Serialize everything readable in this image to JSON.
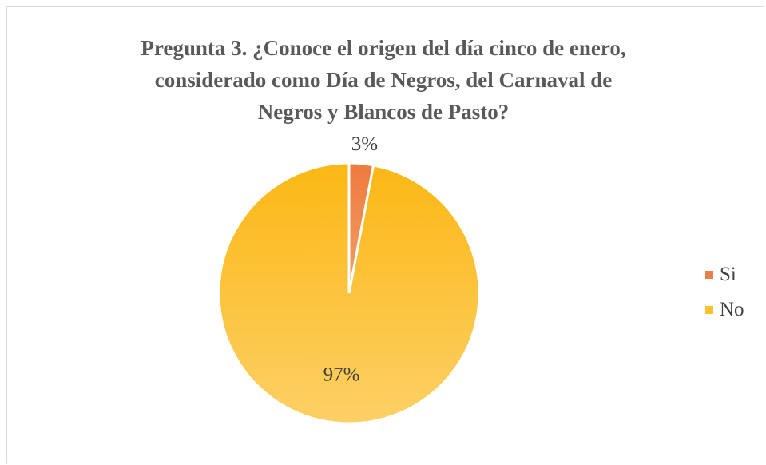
{
  "chart_data": {
    "type": "pie",
    "title_lines": [
      "Pregunta  3. ¿Conoce el origen del día cinco de enero,",
      "considerado  como Día de Negros, del Carnaval  de",
      "Negros y Blancos de Pasto?"
    ],
    "categories": [
      "Si",
      "No"
    ],
    "values": [
      3,
      97
    ],
    "data_labels": [
      "3%",
      "97%"
    ],
    "colors": [
      "#e8804a",
      "#fcc22e"
    ],
    "legend_position": "right"
  }
}
